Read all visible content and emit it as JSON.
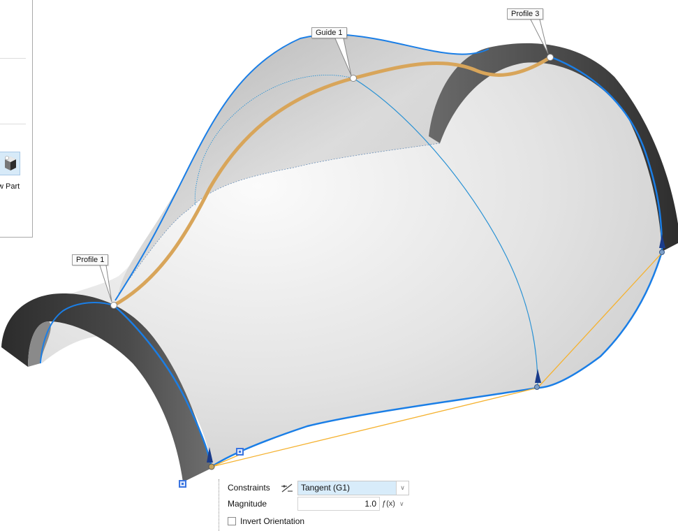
{
  "left_panel": {
    "new_part_label": "w Part",
    "new_part_icon": "new-part-cube-icon"
  },
  "viewport": {
    "callouts": {
      "profile_1": "Profile 1",
      "guide_1": "Guide 1",
      "profile_3": "Profile 3"
    },
    "colors": {
      "edge_highlight": "#1a7ee6",
      "guide_curve": "#d8a55a",
      "tangent_line": "#f5b230",
      "face_dark": "#3c3c3c",
      "surface_light": "#e6e6e6"
    }
  },
  "property_dialog": {
    "constraints_label": "Constraints",
    "constraints_icon": "tangent-constraint-icon",
    "constraints_value": "Tangent (G1)",
    "magnitude_label": "Magnitude",
    "magnitude_value": "1.0",
    "fx_icon": "formula-fx-icon",
    "invert_label": "Invert Orientation",
    "invert_checked": false
  }
}
